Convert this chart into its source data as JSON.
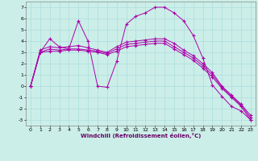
{
  "xlabel": "Windchill (Refroidissement éolien,°C)",
  "bg_color": "#cceee8",
  "grid_color": "#aadddd",
  "line_color": "#aa00aa",
  "xlim": [
    -0.5,
    23.5
  ],
  "ylim": [
    -3.5,
    7.5
  ],
  "xticks": [
    0,
    1,
    2,
    3,
    4,
    5,
    6,
    7,
    8,
    9,
    10,
    11,
    12,
    13,
    14,
    15,
    16,
    17,
    18,
    19,
    20,
    21,
    22,
    23
  ],
  "yticks": [
    -3,
    -2,
    -1,
    0,
    1,
    2,
    3,
    4,
    5,
    6,
    7
  ],
  "series": [
    [
      0,
      3.0,
      4.2,
      3.5,
      3.3,
      5.8,
      4.0,
      0.0,
      -0.1,
      2.2,
      5.5,
      6.2,
      6.5,
      7.0,
      7.0,
      6.5,
      5.8,
      4.5,
      2.5,
      0.1,
      -0.9,
      -1.8,
      -2.2,
      -3.0
    ],
    [
      0,
      3.2,
      3.5,
      3.4,
      3.5,
      3.6,
      3.4,
      3.2,
      3.0,
      3.5,
      3.9,
      4.0,
      4.1,
      4.2,
      4.2,
      3.8,
      3.2,
      2.7,
      2.0,
      1.2,
      0.0,
      -0.8,
      -1.6,
      -2.6
    ],
    [
      0,
      3.0,
      3.3,
      3.2,
      3.3,
      3.3,
      3.2,
      3.1,
      2.9,
      3.3,
      3.7,
      3.8,
      3.9,
      4.0,
      4.0,
      3.5,
      3.0,
      2.5,
      1.8,
      1.0,
      -0.1,
      -0.9,
      -1.7,
      -2.8
    ],
    [
      0,
      3.0,
      3.1,
      3.1,
      3.2,
      3.2,
      3.1,
      3.0,
      2.8,
      3.1,
      3.5,
      3.6,
      3.7,
      3.8,
      3.8,
      3.3,
      2.8,
      2.3,
      1.6,
      0.8,
      -0.2,
      -1.0,
      -1.8,
      -3.0
    ]
  ]
}
